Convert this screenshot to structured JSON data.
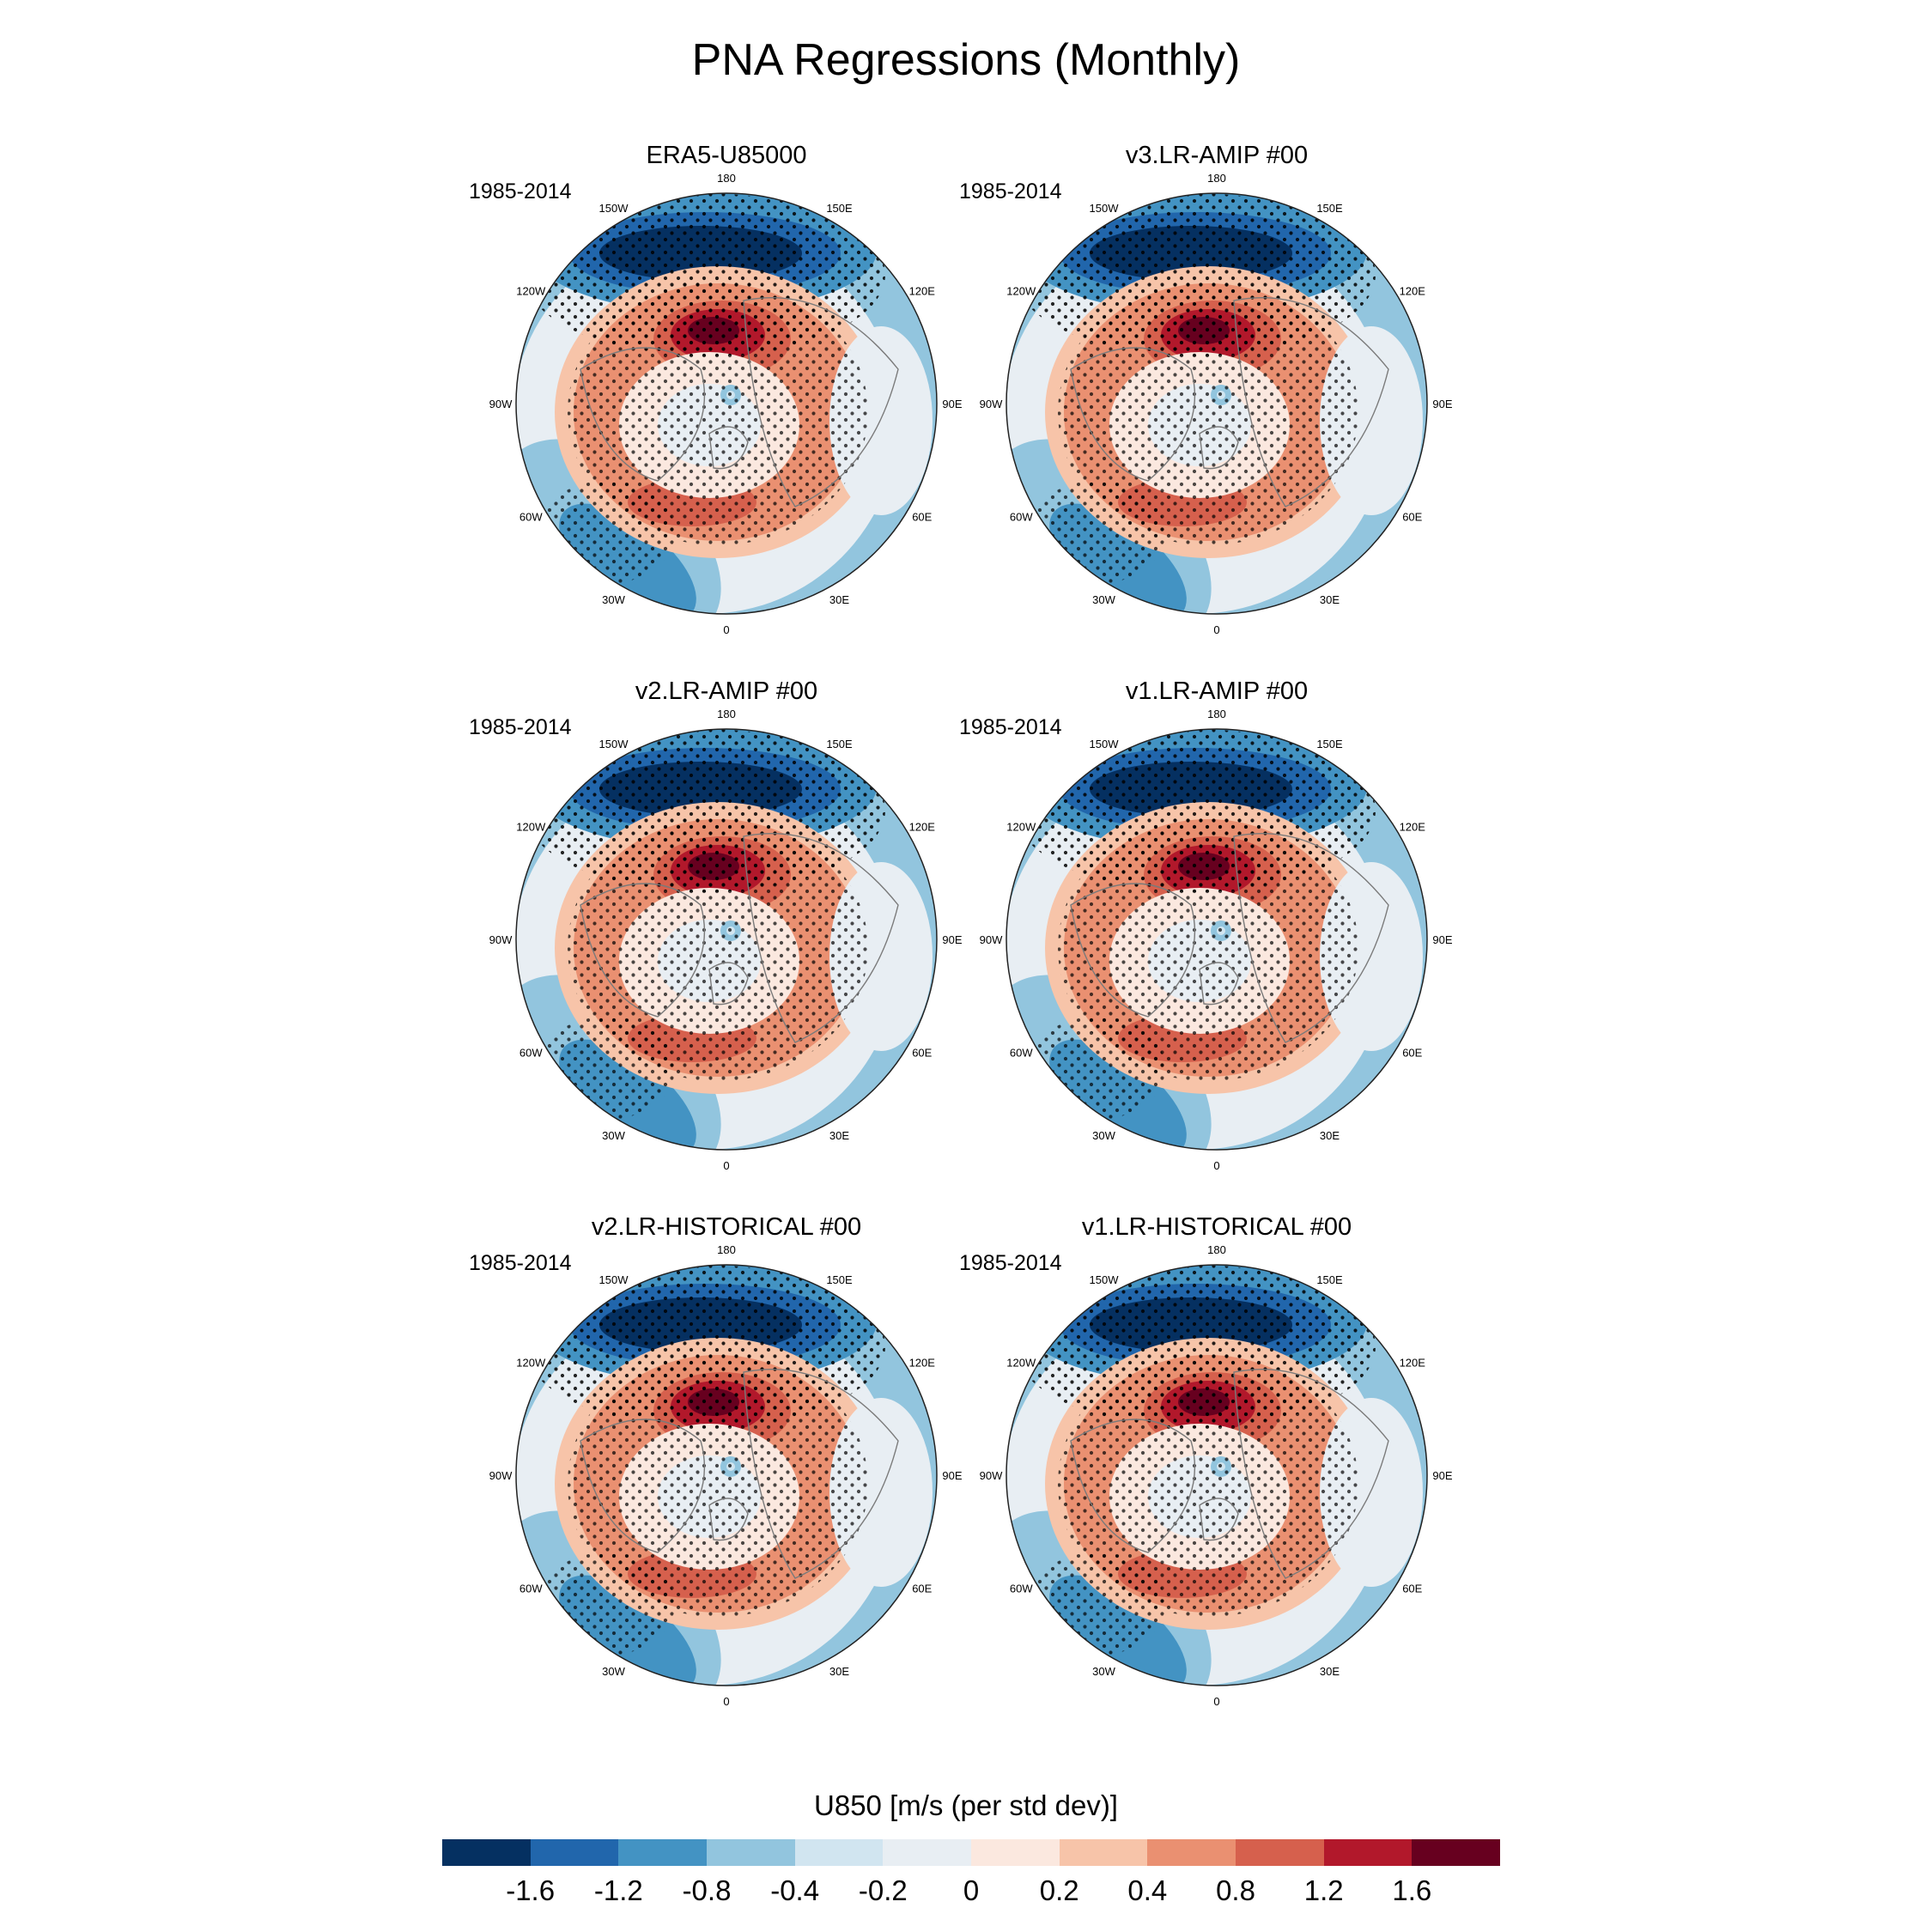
{
  "title": "PNA Regressions (Monthly)",
  "colorbar": {
    "label": "U850 [m/s (per std dev)]",
    "colors": [
      "#053061",
      "#2166ac",
      "#4393c3",
      "#92c5de",
      "#d1e5f0",
      "#e8eef3",
      "#fbe8df",
      "#f7c4a9",
      "#ea9071",
      "#d6604d",
      "#b2182b",
      "#67001f"
    ],
    "tick_labels": [
      "-1.6",
      "-1.2",
      "-0.8",
      "-0.4",
      "-0.2",
      "0",
      "0.2",
      "0.4",
      "0.8",
      "1.2",
      "1.6"
    ]
  },
  "lon_labels": [
    "180",
    "150E",
    "120E",
    "90E",
    "60E",
    "30E",
    "0",
    "30W",
    "60W",
    "90W",
    "120W",
    "150W"
  ],
  "panels": [
    {
      "title": "ERA5-U85000",
      "period": "1985-2014"
    },
    {
      "title": "v3.LR-AMIP  #00",
      "period": "1985-2014"
    },
    {
      "title": "v2.LR-AMIP  #00",
      "period": "1985-2014"
    },
    {
      "title": "v1.LR-AMIP  #00",
      "period": "1985-2014"
    },
    {
      "title": "v2.LR-HISTORICAL  #00",
      "period": "1985-2014"
    },
    {
      "title": "v1.LR-HISTORICAL  #00",
      "period": "1985-2014"
    }
  ]
}
